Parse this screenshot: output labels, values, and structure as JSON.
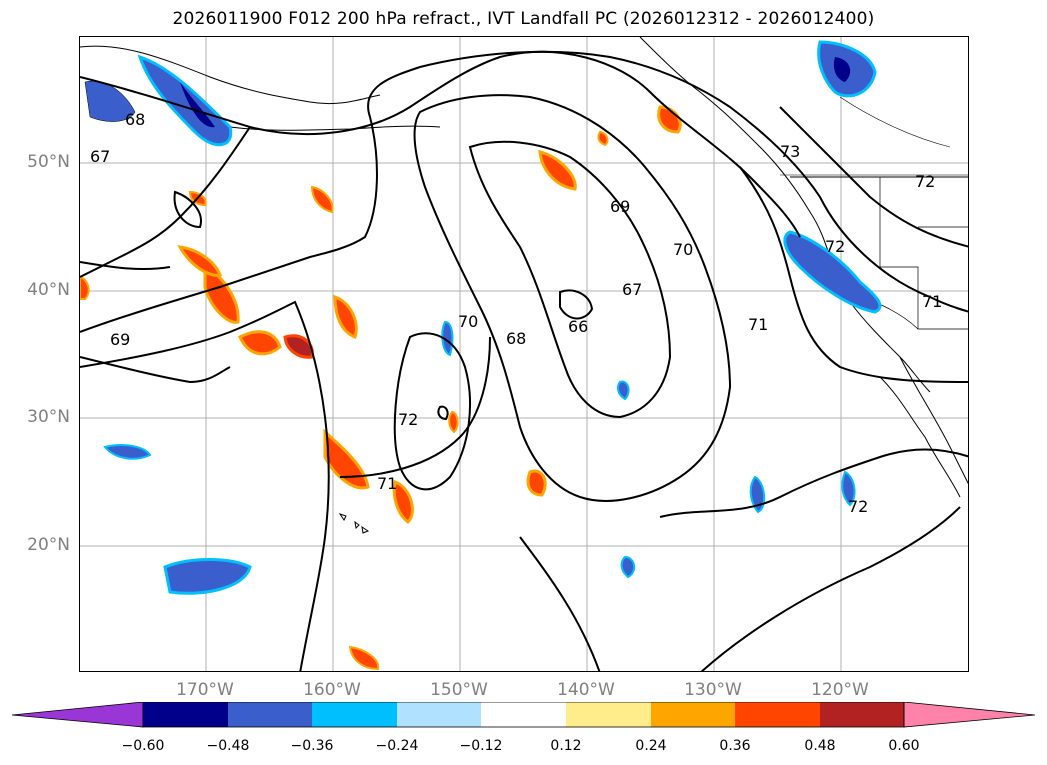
{
  "title": "2026011900 F012 200 hPa refract., IVT Landfall PC (2026012312 - 2026012400)",
  "lat_labels": [
    "50°N",
    "40°N",
    "30°N",
    "20°N"
  ],
  "lon_labels": [
    "170°W",
    "160°W",
    "150°W",
    "140°W",
    "130°W",
    "120°W"
  ],
  "contour_labels": [
    "69",
    "70",
    "67",
    "66",
    "68",
    "70",
    "71",
    "72",
    "71",
    "72",
    "72",
    "69",
    "67",
    "68",
    "73",
    "71",
    "72"
  ],
  "colorbar": {
    "tick_labels": [
      "−0.60",
      "−0.48",
      "−0.36",
      "−0.24",
      "−0.12",
      "0.12",
      "0.24",
      "0.36",
      "0.48",
      "0.60"
    ],
    "colors": [
      "#9a36d6",
      "#00008b",
      "#3a5fcd",
      "#00bfff",
      "#b0e2ff",
      "#ffffff",
      "#ffec8b",
      "#ffa500",
      "#ff4500",
      "#b22222",
      "#ff82ab"
    ]
  }
}
